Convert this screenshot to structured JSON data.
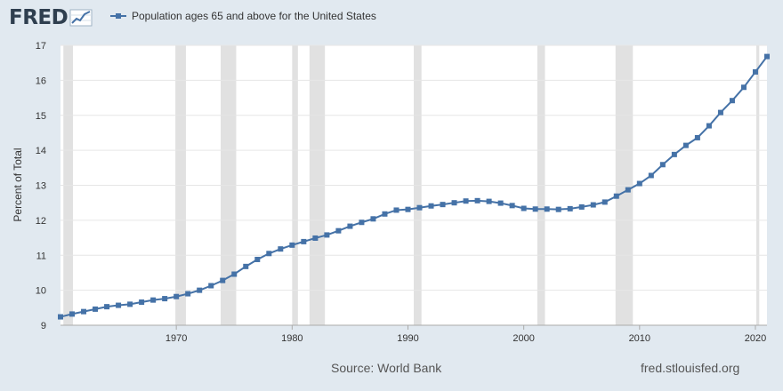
{
  "header": {
    "logo_text": "FRED",
    "legend_label": "Population ages 65 and above for the United States"
  },
  "footer": {
    "source": "Source: World Bank",
    "site": "fred.stlouisfed.org"
  },
  "colors": {
    "background": "#e1e9f0",
    "plot_background": "#ffffff",
    "series": "#4572a7",
    "recession": "#e1e1e1",
    "grid": "#e6e6e6"
  },
  "chart_data": {
    "type": "line",
    "title": "",
    "xlabel": "",
    "ylabel": "Percent of Total",
    "ylim": [
      9,
      17
    ],
    "xlim": [
      1960,
      2021
    ],
    "yticks": [
      9,
      10,
      11,
      12,
      13,
      14,
      15,
      16,
      17
    ],
    "xticks": [
      1970,
      1980,
      1990,
      2000,
      2010,
      2020
    ],
    "grid": "horizontal",
    "legend": "top-left",
    "recessions": [
      [
        1960.25,
        1961.08
      ],
      [
        1969.92,
        1970.83
      ],
      [
        1973.83,
        1975.17
      ],
      [
        1980.0,
        1980.5
      ],
      [
        1981.5,
        1982.83
      ],
      [
        1990.5,
        1991.17
      ],
      [
        2001.17,
        2001.83
      ],
      [
        2007.92,
        2009.42
      ],
      [
        2020.08,
        2020.33
      ]
    ],
    "series": [
      {
        "name": "Population ages 65 and above for the United States",
        "x": [
          1960,
          1961,
          1962,
          1963,
          1964,
          1965,
          1966,
          1967,
          1968,
          1969,
          1970,
          1971,
          1972,
          1973,
          1974,
          1975,
          1976,
          1977,
          1978,
          1979,
          1980,
          1981,
          1982,
          1983,
          1984,
          1985,
          1986,
          1987,
          1988,
          1989,
          1990,
          1991,
          1992,
          1993,
          1994,
          1995,
          1996,
          1997,
          1998,
          1999,
          2000,
          2001,
          2002,
          2003,
          2004,
          2005,
          2006,
          2007,
          2008,
          2009,
          2010,
          2011,
          2012,
          2013,
          2014,
          2015,
          2016,
          2017,
          2018,
          2019,
          2020,
          2021
        ],
        "values": [
          9.24,
          9.32,
          9.39,
          9.46,
          9.53,
          9.57,
          9.6,
          9.66,
          9.72,
          9.76,
          9.82,
          9.9,
          10.0,
          10.13,
          10.28,
          10.46,
          10.68,
          10.88,
          11.05,
          11.18,
          11.29,
          11.39,
          11.49,
          11.58,
          11.7,
          11.83,
          11.94,
          12.04,
          12.18,
          12.29,
          12.31,
          12.36,
          12.41,
          12.45,
          12.5,
          12.55,
          12.56,
          12.54,
          12.49,
          12.42,
          12.34,
          12.32,
          12.32,
          12.31,
          12.33,
          12.38,
          12.44,
          12.52,
          12.69,
          12.87,
          13.05,
          13.28,
          13.59,
          13.88,
          14.14,
          14.36,
          14.7,
          15.08,
          15.42,
          15.8,
          16.24,
          16.68
        ]
      }
    ]
  }
}
